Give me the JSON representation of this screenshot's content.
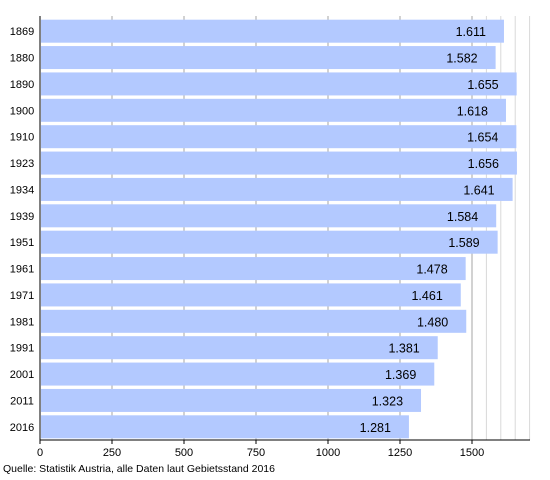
{
  "chart_data": {
    "type": "bar",
    "orientation": "horizontal",
    "categories": [
      "1869",
      "1880",
      "1890",
      "1900",
      "1910",
      "1923",
      "1934",
      "1939",
      "1951",
      "1961",
      "1971",
      "1981",
      "1991",
      "2001",
      "2011",
      "2016"
    ],
    "values": [
      1611,
      1582,
      1655,
      1618,
      1654,
      1656,
      1641,
      1584,
      1589,
      1478,
      1461,
      1480,
      1381,
      1369,
      1323,
      1281
    ],
    "value_labels": [
      "1.611",
      "1.582",
      "1.655",
      "1.618",
      "1.654",
      "1.656",
      "1.641",
      "1.584",
      "1.589",
      "1.478",
      "1.461",
      "1.480",
      "1.381",
      "1.369",
      "1.323",
      "1.281"
    ],
    "x_ticks": [
      0,
      250,
      500,
      750,
      1000,
      1250,
      1500
    ],
    "xlim": [
      0,
      1700
    ],
    "minor_gridlines": [
      1550,
      1600,
      1650,
      1700
    ],
    "grid": true,
    "bar_color": "#b3c9ff",
    "source": "Quelle: Statistik Austria, alle Daten laut Gebietsstand 2016"
  }
}
